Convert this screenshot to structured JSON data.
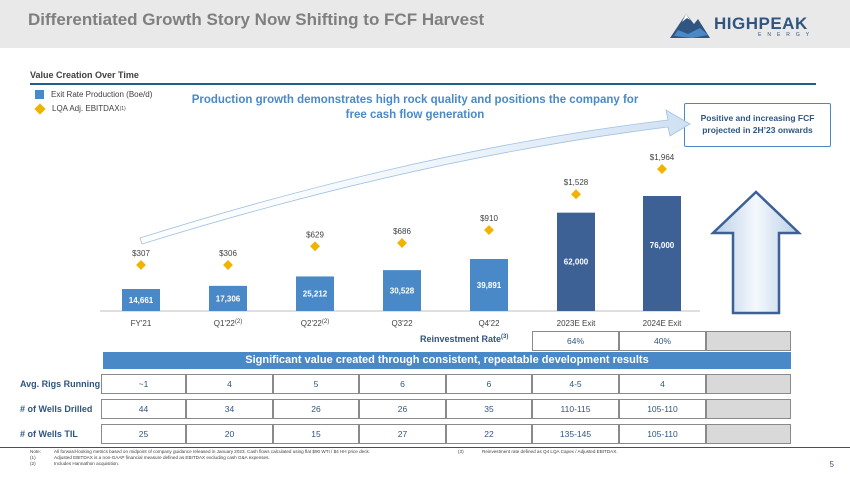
{
  "header": {
    "title": "Differentiated Growth Story Now Shifting to FCF Harvest"
  },
  "logo": {
    "name": "HIGHPEAK",
    "sub": "ENERGY"
  },
  "section_title": "Value Creation Over Time",
  "legend": {
    "production": "Exit Rate Production (Boe/d)",
    "ebitdax": "LQA Adj. EBITDAX",
    "ebitdax_sup": "(1)"
  },
  "headline": "Production growth demonstrates high rock quality and positions the company for free cash flow generation",
  "callout": "Positive and increasing FCF projected in 2H’23 onwards",
  "colors": {
    "bar_actual": "#4a89c8",
    "bar_projected": "#3d6195",
    "diamond": "#f0b400",
    "accent": "#2f5580"
  },
  "chart_data": {
    "type": "bar",
    "categories": [
      "FY'21",
      "Q1'22",
      "Q2'22",
      "Q3'22",
      "Q4'22",
      "2023E Exit",
      "2024E Exit"
    ],
    "category_sups": [
      "",
      "(2)",
      "(2)",
      "",
      "",
      "",
      ""
    ],
    "bar_labels": [
      "14,661",
      "17,306",
      "25,212",
      "30,528",
      "39,891",
      "62,000",
      "76,000"
    ],
    "diamond_labels": [
      "$307",
      "$306",
      "$629",
      "$686",
      "$910",
      "$1,528",
      "$1,964"
    ],
    "series": [
      {
        "name": "Exit Rate Production (Boe/d)",
        "values": [
          14661,
          17306,
          25212,
          30528,
          39891,
          62000,
          76000
        ]
      },
      {
        "name": "LQA Adj. EBITDAX",
        "values": [
          307,
          306,
          629,
          686,
          910,
          1528,
          1964
        ]
      }
    ]
  },
  "table": {
    "reinvestment_label": "Reinvestment Rate",
    "reinvestment_sup": "(3)",
    "reinvestment_values": [
      "64%",
      "40%"
    ],
    "banner": "Significant value created through consistent, repeatable development results",
    "rows": [
      {
        "label": "Avg. Rigs Running",
        "values": [
          "~1",
          "4",
          "5",
          "6",
          "6",
          "4-5",
          "4"
        ]
      },
      {
        "label": "# of Wells Drilled",
        "values": [
          "44",
          "34",
          "26",
          "26",
          "35",
          "110-115",
          "105-110"
        ]
      },
      {
        "label": "# of Wells TIL",
        "values": [
          "25",
          "20",
          "15",
          "27",
          "22",
          "135-145",
          "105-110"
        ]
      }
    ]
  },
  "notes": {
    "note_label": "Note:",
    "note_text": "All forward-looking metrics based on midpoint of company guidance released in January 2023. Cash flows calculated using flat $90 WTI / $4 HH price deck.",
    "n1_label": "(1)",
    "n1_text": "Adjusted EBITDAX is a non-GAAP financial measure defined as EBITDAX excluding cash G&A expenses.",
    "n2_label": "(2)",
    "n2_text": "Includes Hannathon acquisition.",
    "n3_label": "(3)",
    "n3_text": "Reinvestment rate defined as Q4 LQA Capex / Adjusted EBITDAX."
  },
  "page_number": "5"
}
